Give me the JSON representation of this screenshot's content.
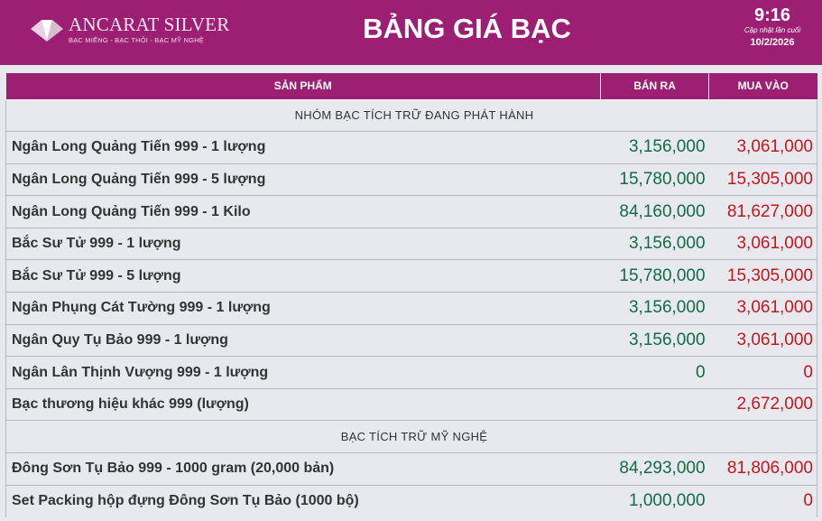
{
  "header": {
    "brand": "ANCARAT SILVER",
    "tagline": "BẠC MIẾNG - BẠC THỎI - BẠC MỸ NGHỆ",
    "title": "BẢNG GIÁ BẠC",
    "time": "9:16",
    "updated_label": "Cập nhật lần cuối",
    "date": "10/2/2026"
  },
  "colors": {
    "brand": "#9c1f74",
    "sell": "#126b45",
    "buy": "#c4161c"
  },
  "table": {
    "columns": [
      "SẢN PHẨM",
      "BÁN RA",
      "MUA VÀO"
    ],
    "sections": [
      {
        "title": "NHÓM BẠC TÍCH TRỮ ĐANG PHÁT HÀNH",
        "rows": [
          {
            "name": "Ngân Long Quảng Tiến 999 - 1 lượng",
            "sell": "3,156,000",
            "buy": "3,061,000"
          },
          {
            "name": "Ngân Long Quảng Tiến 999 - 5 lượng",
            "sell": "15,780,000",
            "buy": "15,305,000"
          },
          {
            "name": "Ngân Long Quảng Tiến 999 - 1 Kilo",
            "sell": "84,160,000",
            "buy": "81,627,000"
          },
          {
            "name": "Bắc Sư Tử 999 - 1 lượng",
            "sell": "3,156,000",
            "buy": "3,061,000"
          },
          {
            "name": "Bắc Sư Tử 999 - 5 lượng",
            "sell": "15,780,000",
            "buy": "15,305,000"
          },
          {
            "name": "Ngân Phụng Cát Tường 999 - 1 lượng",
            "sell": "3,156,000",
            "buy": "3,061,000"
          },
          {
            "name": "Ngân Quy Tụ Bảo 999 - 1 lượng",
            "sell": "3,156,000",
            "buy": "3,061,000"
          },
          {
            "name": "Ngân Lân Thịnh Vượng 999 - 1 lượng",
            "sell": "0",
            "buy": "0"
          },
          {
            "name": "Bạc thương hiệu khác 999 (lượng)",
            "sell": "",
            "buy": "2,672,000"
          }
        ]
      },
      {
        "title": "BẠC TÍCH TRỮ MỸ NGHỆ",
        "rows": [
          {
            "name": "Đông Sơn Tụ Bảo 999 - 1000 gram (20,000 bản)",
            "sell": "84,293,000",
            "buy": "81,806,000"
          },
          {
            "name": "Set Packing hộp đựng Đông Sơn Tụ Bảo (1000 bộ)",
            "sell": "1,000,000",
            "buy": "0"
          }
        ]
      }
    ]
  }
}
